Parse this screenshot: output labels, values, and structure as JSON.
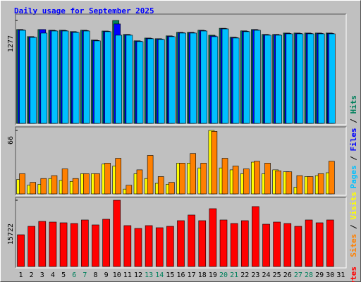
{
  "chart_data": {
    "type": "bar",
    "title": "Daily usage for September 2025",
    "title_color": "#0000ff",
    "categories": [
      "1",
      "2",
      "3",
      "4",
      "5",
      "6",
      "7",
      "8",
      "9",
      "10",
      "11",
      "12",
      "13",
      "14",
      "15",
      "16",
      "17",
      "18",
      "19",
      "20",
      "21",
      "22",
      "23",
      "24",
      "25",
      "26",
      "27",
      "28",
      "29",
      "30",
      "31"
    ],
    "highlight_categories": [
      "6",
      "7",
      "13",
      "14",
      "20",
      "21",
      "27",
      "28"
    ],
    "highlight_color": "#00805c",
    "separator": " / ",
    "panels": [
      {
        "ylim": [
          0,
          1277
        ],
        "yticks": [
          1277
        ],
        "series": [
          {
            "name": "Hits",
            "color": "#00805c",
            "values": [
              1165,
              1077,
              1164,
              1156,
              1156,
              1139,
              1156,
              1034,
              1146,
              1277,
              1104,
              1025,
              1059,
              1051,
              1086,
              1130,
              1130,
              1156,
              1094,
              1180,
              1069,
              1148,
              1165,
              1104,
              1104,
              1121,
              1121,
              1121,
              1121,
              1121,
              null
            ]
          },
          {
            "name": "Files",
            "color": "#0000ff",
            "values": [
              1160,
              1072,
              1164,
              1151,
              1151,
              1134,
              1151,
              1029,
              1142,
              1234,
              1099,
              1020,
              1055,
              1046,
              1081,
              1125,
              1125,
              1151,
              1085,
              1176,
              1064,
              1143,
              1160,
              1099,
              1099,
              1116,
              1116,
              1116,
              1116,
              1116,
              null
            ]
          },
          {
            "name": "Pages",
            "color": "#00c0ff",
            "values": [
              1155,
              1067,
              1120,
              1146,
              1146,
              1129,
              1146,
              1024,
              1138,
              1094,
              1094,
              1015,
              1050,
              1041,
              1076,
              1120,
              1120,
              1146,
              1076,
              1172,
              1059,
              1138,
              1155,
              1094,
              1094,
              1111,
              1111,
              1111,
              1111,
              1111,
              null
            ]
          }
        ]
      },
      {
        "ylim": [
          0,
          66
        ],
        "yticks": [
          66
        ],
        "series": [
          {
            "name": "Visits",
            "color": "#ffff00",
            "values": [
              15,
              9,
              10,
              16,
              14,
              13,
              21,
              21,
              31,
              29,
              5,
              21,
              16,
              11,
              10,
              32,
              32,
              27,
              66,
              27,
              25,
              21,
              33,
              21,
              25,
              23,
              7,
              18,
              19,
              22,
              null
            ]
          },
          {
            "name": "Sites",
            "color": "#ff8000",
            "values": [
              21,
              12,
              16,
              19,
              26,
              16,
              21,
              21,
              32,
              37,
              9,
              25,
              40,
              18,
              12,
              32,
              42,
              32,
              65,
              37,
              29,
              26,
              34,
              32,
              24,
              23,
              19,
              18,
              21,
              34,
              null
            ]
          }
        ]
      },
      {
        "ylim": [
          0,
          15722
        ],
        "yticks": [
          15722
        ],
        "series": [
          {
            "name": "KBytes",
            "color": "#ff0000",
            "values": [
              7529,
              9535,
              10707,
              10540,
              10372,
              10205,
              11042,
              9870,
              11209,
              15722,
              9703,
              9034,
              9703,
              9201,
              9535,
              10874,
              12213,
              10874,
              13718,
              11042,
              10205,
              10874,
              14220,
              10037,
              10540,
              10205,
              9535,
              11042,
              10372,
              11042,
              null
            ]
          }
        ]
      }
    ]
  }
}
